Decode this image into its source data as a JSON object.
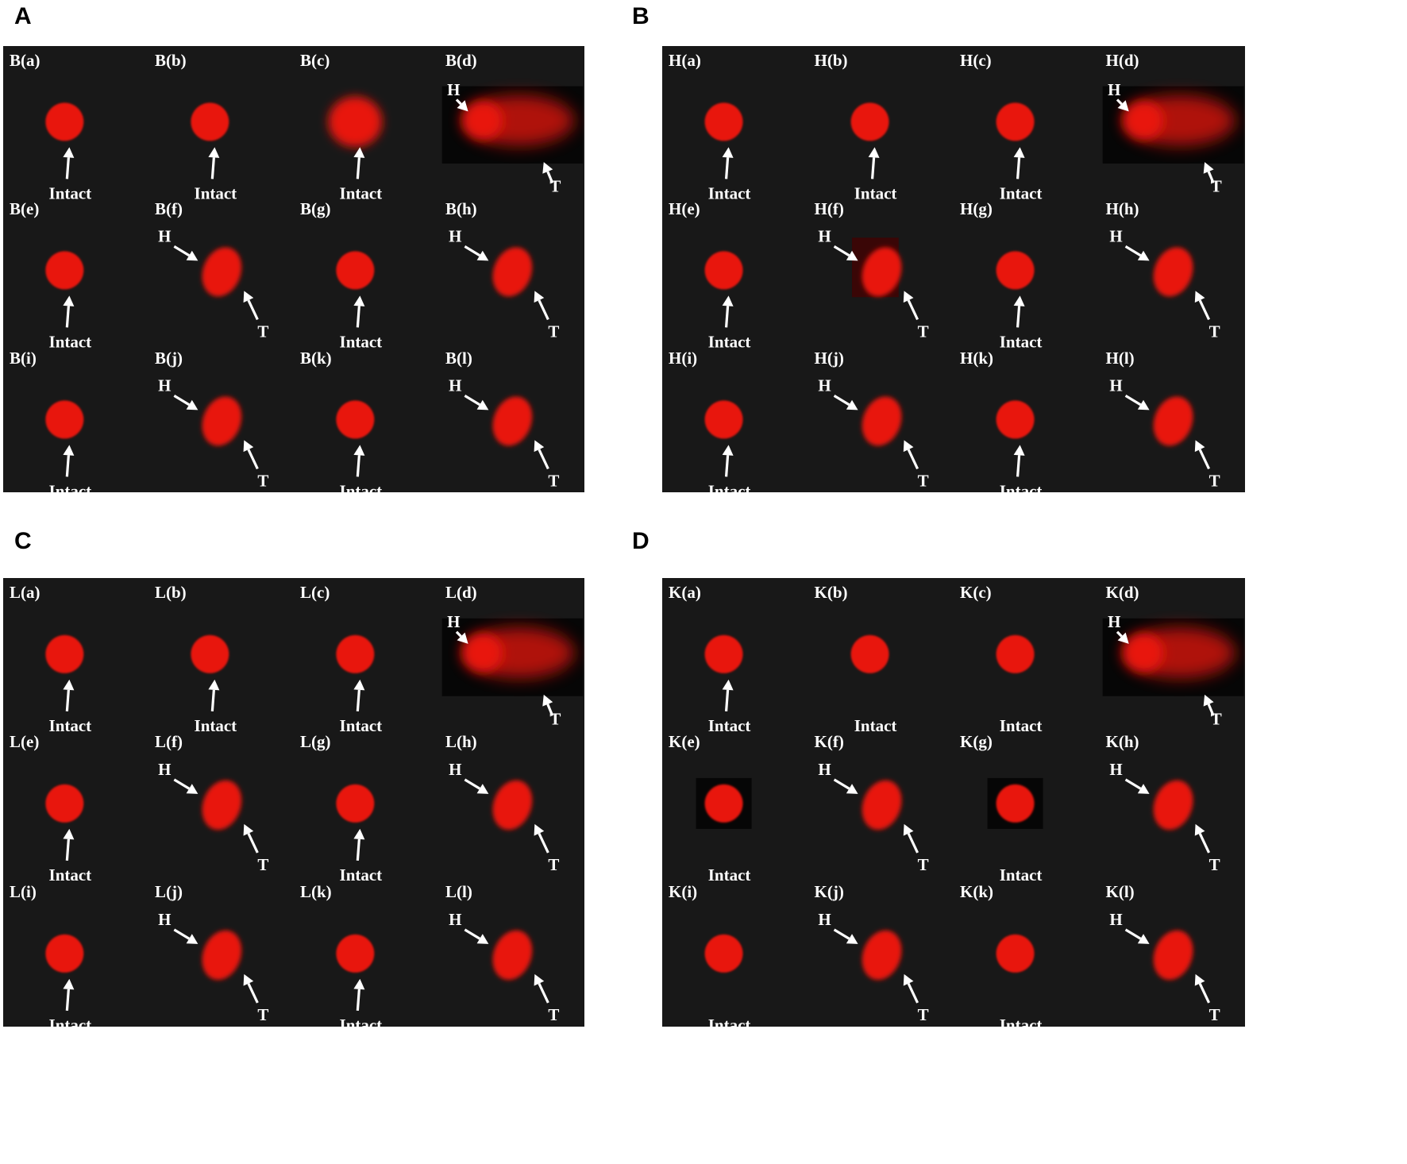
{
  "panels": [
    {
      "letter": "A",
      "cells": [
        {
          "label": "B(a)",
          "type": "intact"
        },
        {
          "label": "B(b)",
          "type": "intact"
        },
        {
          "label": "B(c)",
          "type": "intact-diffuse"
        },
        {
          "label": "B(d)",
          "type": "comet-long"
        },
        {
          "label": "B(e)",
          "type": "intact"
        },
        {
          "label": "B(f)",
          "type": "comet"
        },
        {
          "label": "B(g)",
          "type": "intact"
        },
        {
          "label": "B(h)",
          "type": "comet"
        },
        {
          "label": "B(i)",
          "type": "intact"
        },
        {
          "label": "B(j)",
          "type": "comet"
        },
        {
          "label": "B(k)",
          "type": "intact"
        },
        {
          "label": "B(l)",
          "type": "comet"
        }
      ]
    },
    {
      "letter": "B",
      "cells": [
        {
          "label": "H(a)",
          "type": "intact"
        },
        {
          "label": "H(b)",
          "type": "intact"
        },
        {
          "label": "H(c)",
          "type": "intact"
        },
        {
          "label": "H(d)",
          "type": "comet-long"
        },
        {
          "label": "H(e)",
          "type": "intact"
        },
        {
          "label": "H(f)",
          "type": "comet-boxed"
        },
        {
          "label": "H(g)",
          "type": "intact"
        },
        {
          "label": "H(h)",
          "type": "comet"
        },
        {
          "label": "H(i)",
          "type": "intact"
        },
        {
          "label": "H(j)",
          "type": "comet"
        },
        {
          "label": "H(k)",
          "type": "intact"
        },
        {
          "label": "H(l)",
          "type": "comet"
        }
      ]
    },
    {
      "letter": "C",
      "cells": [
        {
          "label": "L(a)",
          "type": "intact"
        },
        {
          "label": "L(b)",
          "type": "intact"
        },
        {
          "label": "L(c)",
          "type": "intact"
        },
        {
          "label": "L(d)",
          "type": "comet-long"
        },
        {
          "label": "L(e)",
          "type": "intact"
        },
        {
          "label": "L(f)",
          "type": "comet"
        },
        {
          "label": "L(g)",
          "type": "intact"
        },
        {
          "label": "L(h)",
          "type": "comet"
        },
        {
          "label": "L(i)",
          "type": "intact"
        },
        {
          "label": "L(j)",
          "type": "comet"
        },
        {
          "label": "L(k)",
          "type": "intact"
        },
        {
          "label": "L(l)",
          "type": "comet"
        }
      ]
    },
    {
      "letter": "D",
      "cells": [
        {
          "label": "K(a)",
          "type": "intact"
        },
        {
          "label": "K(b)",
          "type": "intact-noarrow"
        },
        {
          "label": "K(c)",
          "type": "intact-noarrow"
        },
        {
          "label": "K(d)",
          "type": "comet-long"
        },
        {
          "label": "K(e)",
          "type": "intact-boxed"
        },
        {
          "label": "K(f)",
          "type": "comet"
        },
        {
          "label": "K(g)",
          "type": "intact-boxed"
        },
        {
          "label": "K(h)",
          "type": "comet"
        },
        {
          "label": "K(i)",
          "type": "intact-noarrow"
        },
        {
          "label": "K(j)",
          "type": "comet"
        },
        {
          "label": "K(k)",
          "type": "intact-noarrow"
        },
        {
          "label": "K(l)",
          "type": "comet"
        }
      ]
    }
  ],
  "annotations": {
    "intact": "Intact",
    "head": "H",
    "tail": "T"
  },
  "colors": {
    "background": "#181818",
    "nucleus": "#e8140f",
    "label": "#ffffff",
    "figure_background": "#ffffff"
  }
}
